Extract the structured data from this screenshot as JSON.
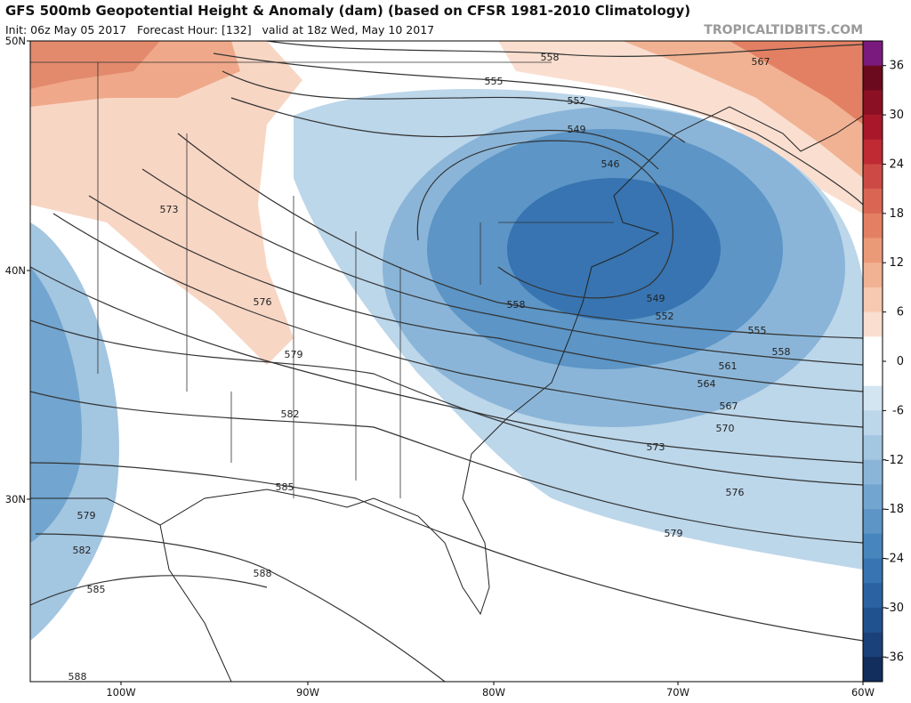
{
  "header": {
    "title": "GFS 500mb Geopotential Height & Anomaly (dam) (based on CFSR 1981-2010 Climatology)",
    "subtitle": "Init: 06z May 05 2017   Forecast Hour: [132]   valid at 18z Wed, May 10 2017",
    "site": "TROPICALTIDBITS.COM"
  },
  "axes": {
    "lat_labels": [
      "50N",
      "40N",
      "30N"
    ],
    "lon_labels": [
      "100W",
      "90W",
      "80W",
      "70W",
      "60W"
    ]
  },
  "colorbar": {
    "range": [
      -39,
      39
    ],
    "ticks": [
      36,
      30,
      24,
      18,
      12,
      6,
      0,
      -6,
      -12,
      -18,
      -24,
      -30,
      -36
    ],
    "colors": [
      "#7b1a7e",
      "#6b0a1e",
      "#8c1023",
      "#a8172a",
      "#bf2a33",
      "#cc4a45",
      "#d96553",
      "#e38063",
      "#eb9a78",
      "#f1b293",
      "#f6c9b1",
      "#fadfd0",
      "#ffffff",
      "#ffffff",
      "#d3e5f1",
      "#bcd6ea",
      "#a3c6e1",
      "#8ab5d8",
      "#72a5cf",
      "#5c95c6",
      "#4785bd",
      "#3774b1",
      "#2b63a2",
      "#215290",
      "#1a4179",
      "#122e5c"
    ]
  },
  "contours": [
    558,
    567,
    555,
    552,
    549,
    546,
    573,
    576,
    558,
    549,
    552,
    555,
    558,
    579,
    561,
    564,
    567,
    582,
    570,
    573,
    585,
    576,
    579,
    579,
    582,
    588,
    585,
    588
  ]
}
